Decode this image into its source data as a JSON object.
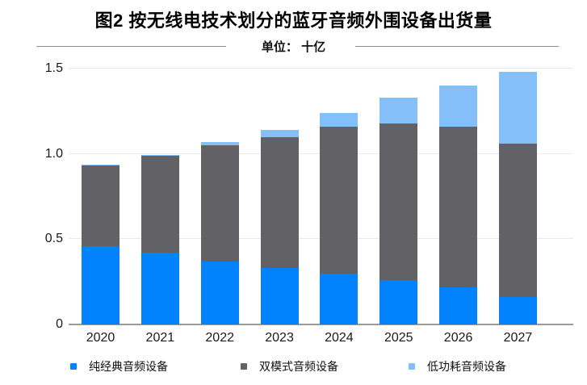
{
  "title": "图2 按无线电技术划分的蓝牙音频外围设备出货量",
  "subtitle": "单位： 十亿",
  "colors": {
    "classic_blue": "#0282fc",
    "dual_gray": "#626266",
    "le_light_blue": "#85bffa",
    "gridline": "#e9e9e9",
    "baseline": "#9b9b9b",
    "divider": "#8f8f8f",
    "text": "#1a1a1a"
  },
  "y_axis": {
    "ticks": [
      {
        "label": "0",
        "value": 0
      },
      {
        "label": "0.5",
        "value": 0.5
      },
      {
        "label": "1.0",
        "value": 1.0
      },
      {
        "label": "1.5",
        "value": 1.5
      }
    ]
  },
  "legend": [
    {
      "label": "纯经典音频设备",
      "color_key": "classic_blue"
    },
    {
      "label": "双模式音频设备",
      "color_key": "dual_gray"
    },
    {
      "label": "低功耗音频设备",
      "color_key": "le_light_blue"
    }
  ],
  "chart_data": {
    "type": "bar",
    "stacked": true,
    "title": "图2 按无线电技术划分的蓝牙音频外围设备出货量",
    "unit_label": "单位： 十亿",
    "categories": [
      "2020",
      "2021",
      "2022",
      "2023",
      "2024",
      "2025",
      "2026",
      "2027"
    ],
    "series": [
      {
        "name": "纯经典音频设备",
        "color_key": "classic_blue",
        "values": [
          0.46,
          0.42,
          0.37,
          0.33,
          0.3,
          0.26,
          0.22,
          0.16
        ]
      },
      {
        "name": "双模式音频设备",
        "color_key": "dual_gray",
        "values": [
          0.47,
          0.57,
          0.68,
          0.77,
          0.86,
          0.92,
          0.94,
          0.9
        ]
      },
      {
        "name": "低功耗音频设备",
        "color_key": "le_light_blue",
        "values": [
          0.005,
          0.005,
          0.02,
          0.04,
          0.08,
          0.15,
          0.24,
          0.42
        ]
      }
    ],
    "totals": [
      0.93,
      0.99,
      1.07,
      1.14,
      1.24,
      1.33,
      1.4,
      1.48
    ],
    "ylim": [
      0,
      1.5
    ],
    "yticks": [
      0,
      0.5,
      1.0,
      1.5
    ],
    "grid": true,
    "legend_position": "bottom"
  }
}
